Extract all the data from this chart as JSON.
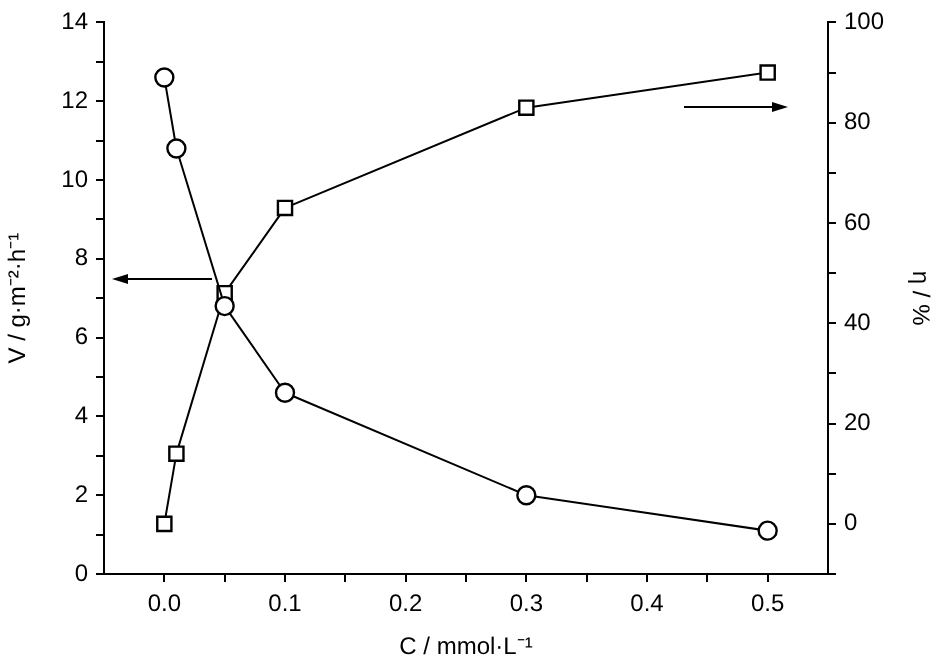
{
  "chart_data": {
    "type": "line",
    "xlabel": "C / mmol·L⁻¹",
    "ylabel": "V / g·m⁻²·h⁻¹",
    "y2label": "η / %",
    "xlim": [
      -0.05,
      0.55
    ],
    "xticks": [
      {
        "value": 0,
        "label": "0.0"
      },
      {
        "value": 0.05,
        "label": null
      },
      0.1,
      {
        "value": 0.15,
        "label": null
      },
      0.2,
      {
        "value": 0.25,
        "label": null
      },
      0.3,
      {
        "value": 0.35,
        "label": null
      },
      0.4,
      {
        "value": 0.45,
        "label": null
      },
      0.5
    ],
    "ylim": [
      0,
      14
    ],
    "yticks": [
      0,
      {
        "value": 1,
        "label": null
      },
      2,
      {
        "value": 3,
        "label": null
      },
      4,
      {
        "value": 5,
        "label": null
      },
      6,
      {
        "value": 7,
        "label": null
      },
      8,
      {
        "value": 9,
        "label": null
      },
      10,
      {
        "value": 11,
        "label": null
      },
      12,
      {
        "value": 13,
        "label": null
      },
      14
    ],
    "y2lim": [
      -10,
      100
    ],
    "y2ticks": [
      {
        "value": -10,
        "label": null
      },
      0,
      {
        "value": 10,
        "label": null
      },
      20,
      {
        "value": 30,
        "label": null
      },
      40,
      {
        "value": 50,
        "label": null
      },
      60,
      {
        "value": 70,
        "label": null
      },
      80,
      {
        "value": 90,
        "label": null
      },
      100
    ],
    "grid": false,
    "legend": false,
    "series": [
      {
        "color": "#000000",
        "marker": "circle",
        "x": [
          0,
          0.01,
          0.05,
          0.1,
          0.3,
          0.5
        ],
        "values": [
          12.6,
          10.8,
          6.8,
          4.6,
          2.0,
          1.1
        ]
      },
      {
        "color": "#000000",
        "marker": "square",
        "axis": "y2",
        "x": [
          0,
          0.01,
          0.05,
          0.1,
          0.3,
          0.5
        ],
        "values": [
          0,
          14,
          46,
          63,
          83,
          90
        ]
      }
    ]
  }
}
